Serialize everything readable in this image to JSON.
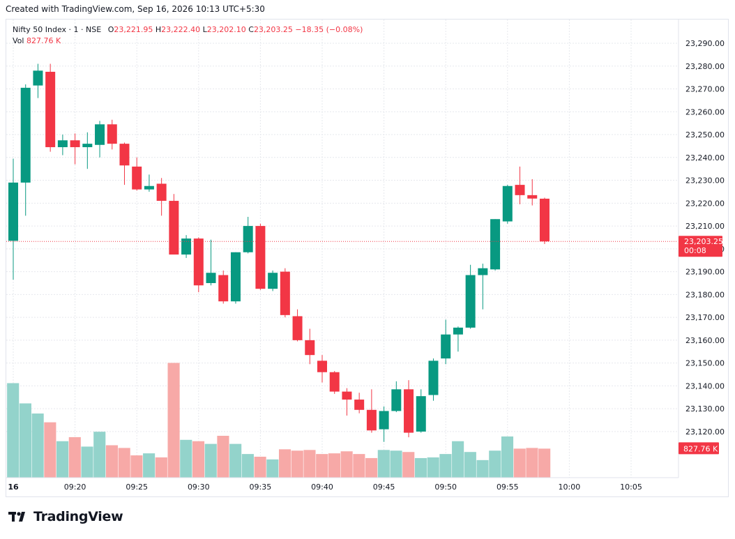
{
  "caption": "Created with TradingView.com, Sep 16, 2026 10:13 UTC+5:30",
  "legend": {
    "symbol": "Nifty 50 Index · 1 · NSE",
    "o_label": "O",
    "o_value": "23,221.95",
    "h_label": "H",
    "h_value": "23,222.40",
    "l_label": "L",
    "l_value": "23,202.10",
    "c_label": "C",
    "c_value": "23,203.25",
    "change": "−18.35 (−0.08%)",
    "vol_label": "Vol",
    "vol_value": "827.76 K"
  },
  "footer": {
    "brand": "TradingView"
  },
  "colors": {
    "up": "#089981",
    "down": "#f23645",
    "up_vol": "#93d3cb",
    "down_vol": "#f7a9a7",
    "grid": "#e6e8ed"
  },
  "chart_data": {
    "type": "candlestick",
    "interval": "1 minute",
    "start_time": "09:15",
    "price_axis": {
      "ylim": [
        23110,
        23295
      ],
      "ticks": [
        "23,120.00",
        "23,130.00",
        "23,140.00",
        "23,150.00",
        "23,160.00",
        "23,170.00",
        "23,180.00",
        "23,190.00",
        "23,200.00",
        "23,210.00",
        "23,220.00",
        "23,230.00",
        "23,240.00",
        "23,250.00",
        "23,260.00",
        "23,270.00",
        "23,280.00",
        "23,290.00"
      ],
      "last_price_label": "23,203.25",
      "countdown_label": "00:08",
      "volume_label": "827.76 K"
    },
    "time_axis": {
      "ticks": [
        {
          "label": "16",
          "time": "09:15"
        },
        {
          "label": "09:20",
          "time": "09:20"
        },
        {
          "label": "09:25",
          "time": "09:25"
        },
        {
          "label": "09:30",
          "time": "09:30"
        },
        {
          "label": "09:35",
          "time": "09:35"
        },
        {
          "label": "09:40",
          "time": "09:40"
        },
        {
          "label": "09:45",
          "time": "09:45"
        },
        {
          "label": "09:50",
          "time": "09:50"
        },
        {
          "label": "09:55",
          "time": "09:55"
        },
        {
          "label": "10:00",
          "time": "10:00"
        },
        {
          "label": "10:05",
          "time": "10:05"
        }
      ]
    },
    "grid": true,
    "candles": [
      {
        "t": "09:15",
        "o": 23203.5,
        "h": 23239.5,
        "l": 23186.5,
        "c": 23229.0,
        "v": 1400
      },
      {
        "t": "09:16",
        "o": 23229.0,
        "h": 23272.0,
        "l": 23214.5,
        "c": 23270.5,
        "v": 1100
      },
      {
        "t": "09:17",
        "o": 23271.5,
        "h": 23281.0,
        "l": 23266.0,
        "c": 23278.0,
        "v": 950
      },
      {
        "t": "09:18",
        "o": 23277.5,
        "h": 23281.0,
        "l": 23242.5,
        "c": 23244.5,
        "v": 820
      },
      {
        "t": "09:19",
        "o": 23244.5,
        "h": 23250.0,
        "l": 23241.0,
        "c": 23247.5,
        "v": 540
      },
      {
        "t": "09:20",
        "o": 23247.5,
        "h": 23250.5,
        "l": 23237.0,
        "c": 23244.5,
        "v": 600
      },
      {
        "t": "09:21",
        "o": 23244.5,
        "h": 23251.0,
        "l": 23235.0,
        "c": 23246.0,
        "v": 460
      },
      {
        "t": "09:22",
        "o": 23245.5,
        "h": 23256.0,
        "l": 23240.0,
        "c": 23254.5,
        "v": 680
      },
      {
        "t": "09:23",
        "o": 23254.5,
        "h": 23256.5,
        "l": 23243.5,
        "c": 23246.0,
        "v": 480
      },
      {
        "t": "09:24",
        "o": 23246.0,
        "h": 23246.5,
        "l": 23228.0,
        "c": 23236.5,
        "v": 440
      },
      {
        "t": "09:25",
        "o": 23236.0,
        "h": 23240.0,
        "l": 23225.5,
        "c": 23226.0,
        "v": 330
      },
      {
        "t": "09:26",
        "o": 23226.0,
        "h": 23232.5,
        "l": 23225.0,
        "c": 23227.5,
        "v": 360
      },
      {
        "t": "09:27",
        "o": 23228.5,
        "h": 23231.0,
        "l": 23214.5,
        "c": 23221.0,
        "v": 300
      },
      {
        "t": "09:28",
        "o": 23221.0,
        "h": 23224.0,
        "l": 23197.5,
        "c": 23197.5,
        "v": 1700
      },
      {
        "t": "09:29",
        "o": 23197.5,
        "h": 23206.0,
        "l": 23196.0,
        "c": 23204.5,
        "v": 560
      },
      {
        "t": "09:30",
        "o": 23204.5,
        "h": 23205.0,
        "l": 23181.0,
        "c": 23184.0,
        "v": 540
      },
      {
        "t": "09:31",
        "o": 23185.0,
        "h": 23204.0,
        "l": 23184.0,
        "c": 23189.5,
        "v": 500
      },
      {
        "t": "09:32",
        "o": 23188.5,
        "h": 23190.5,
        "l": 23176.0,
        "c": 23177.0,
        "v": 620
      },
      {
        "t": "09:33",
        "o": 23177.0,
        "h": 23198.5,
        "l": 23176.0,
        "c": 23198.5,
        "v": 500
      },
      {
        "t": "09:34",
        "o": 23198.5,
        "h": 23214.0,
        "l": 23198.0,
        "c": 23210.0,
        "v": 350
      },
      {
        "t": "09:35",
        "o": 23210.0,
        "h": 23211.0,
        "l": 23182.0,
        "c": 23182.5,
        "v": 310
      },
      {
        "t": "09:36",
        "o": 23182.5,
        "h": 23190.5,
        "l": 23181.5,
        "c": 23189.5,
        "v": 270
      },
      {
        "t": "09:37",
        "o": 23190.0,
        "h": 23191.5,
        "l": 23170.0,
        "c": 23171.0,
        "v": 420
      },
      {
        "t": "09:38",
        "o": 23170.5,
        "h": 23173.5,
        "l": 23159.5,
        "c": 23160.0,
        "v": 400
      },
      {
        "t": "09:39",
        "o": 23160.0,
        "h": 23165.0,
        "l": 23149.5,
        "c": 23153.5,
        "v": 410
      },
      {
        "t": "09:40",
        "o": 23151.0,
        "h": 23153.5,
        "l": 23141.5,
        "c": 23146.0,
        "v": 350
      },
      {
        "t": "09:41",
        "o": 23146.0,
        "h": 23146.5,
        "l": 23136.5,
        "c": 23137.5,
        "v": 360
      },
      {
        "t": "09:42",
        "o": 23137.5,
        "h": 23139.0,
        "l": 23127.0,
        "c": 23134.0,
        "v": 390
      },
      {
        "t": "09:43",
        "o": 23134.0,
        "h": 23137.0,
        "l": 23128.0,
        "c": 23129.5,
        "v": 350
      },
      {
        "t": "09:44",
        "o": 23129.5,
        "h": 23138.5,
        "l": 23119.5,
        "c": 23120.5,
        "v": 290
      },
      {
        "t": "09:45",
        "o": 23121.0,
        "h": 23131.0,
        "l": 23115.5,
        "c": 23129.0,
        "v": 410
      },
      {
        "t": "09:46",
        "o": 23129.0,
        "h": 23142.0,
        "l": 23128.5,
        "c": 23138.5,
        "v": 400
      },
      {
        "t": "09:47",
        "o": 23138.5,
        "h": 23142.5,
        "l": 23117.5,
        "c": 23119.5,
        "v": 380
      },
      {
        "t": "09:48",
        "o": 23120.0,
        "h": 23138.5,
        "l": 23119.5,
        "c": 23135.5,
        "v": 290
      },
      {
        "t": "09:49",
        "o": 23136.0,
        "h": 23152.0,
        "l": 23133.5,
        "c": 23151.0,
        "v": 300
      },
      {
        "t": "09:50",
        "o": 23152.0,
        "h": 23169.0,
        "l": 23149.5,
        "c": 23162.5,
        "v": 350
      },
      {
        "t": "09:51",
        "o": 23162.5,
        "h": 23166.0,
        "l": 23155.0,
        "c": 23165.5,
        "v": 540
      },
      {
        "t": "09:52",
        "o": 23165.5,
        "h": 23193.0,
        "l": 23165.0,
        "c": 23188.5,
        "v": 380
      },
      {
        "t": "09:53",
        "o": 23188.5,
        "h": 23193.5,
        "l": 23173.5,
        "c": 23191.5,
        "v": 260
      },
      {
        "t": "09:54",
        "o": 23191.0,
        "h": 23213.0,
        "l": 23190.5,
        "c": 23213.0,
        "v": 400
      },
      {
        "t": "09:55",
        "o": 23212.0,
        "h": 23228.0,
        "l": 23211.0,
        "c": 23227.5,
        "v": 610
      },
      {
        "t": "09:56",
        "o": 23228.0,
        "h": 23236.0,
        "l": 23219.5,
        "c": 23223.5,
        "v": 430
      },
      {
        "t": "09:57",
        "o": 23223.5,
        "h": 23230.5,
        "l": 23219.0,
        "c": 23222.0,
        "v": 440
      },
      {
        "t": "09:58",
        "o": 23221.95,
        "h": 23222.4,
        "l": 23202.1,
        "c": 23203.25,
        "v": 430
      }
    ]
  }
}
